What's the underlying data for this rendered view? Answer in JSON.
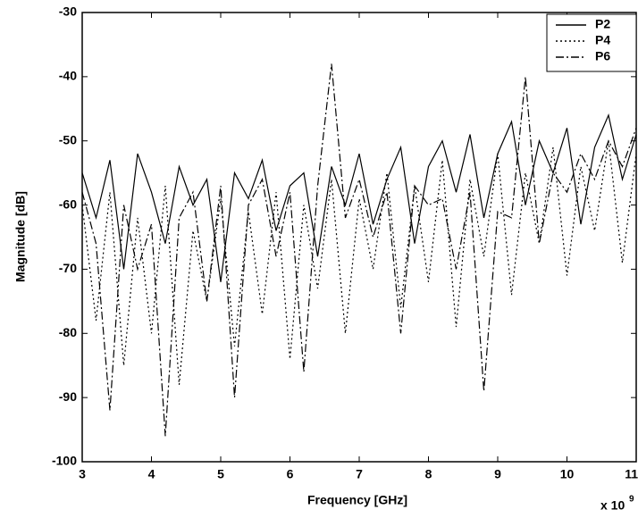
{
  "chart_data": {
    "type": "line",
    "xlabel": "Frequency [GHz]",
    "ylabel": "Magnitude [dB]",
    "x_multiplier": "x 10",
    "x_multiplier_exponent": "9",
    "x": [
      3,
      3.2,
      3.4,
      3.6,
      3.8,
      4,
      4.2,
      4.4,
      4.6,
      4.8,
      5,
      5.2,
      5.4,
      5.6,
      5.8,
      6,
      6.2,
      6.4,
      6.6,
      6.8,
      7,
      7.2,
      7.4,
      7.6,
      7.8,
      8,
      8.2,
      8.4,
      8.6,
      8.8,
      9,
      9.2,
      9.4,
      9.6,
      9.8,
      10,
      10.2,
      10.4,
      10.6,
      10.8,
      11
    ],
    "series": [
      {
        "name": "P2",
        "color": "#000000",
        "style": "solid",
        "values": [
          -55,
          -62,
          -53,
          -70,
          -52,
          -58,
          -66,
          -54,
          -60,
          -56,
          -72,
          -55,
          -59,
          -53,
          -64,
          -57,
          -55,
          -68,
          -54,
          -60,
          -52,
          -63,
          -56,
          -51,
          -66,
          -54,
          -50,
          -58,
          -49,
          -62,
          -52,
          -47,
          -60,
          -50,
          -55,
          -48,
          -63,
          -51,
          -46,
          -56,
          -49
        ]
      },
      {
        "name": "P4",
        "color": "#000000",
        "style": "dotted",
        "values": [
          -60,
          -78,
          -58,
          -85,
          -62,
          -80,
          -57,
          -88,
          -64,
          -75,
          -59,
          -82,
          -61,
          -77,
          -58,
          -84,
          -60,
          -73,
          -56,
          -80,
          -59,
          -70,
          -55,
          -76,
          -57,
          -72,
          -53,
          -79,
          -56,
          -68,
          -52,
          -74,
          -55,
          -66,
          -51,
          -71,
          -54,
          -64,
          -50,
          -69,
          -52
        ]
      },
      {
        "name": "P6",
        "color": "#000000",
        "style": "dashdot",
        "values": [
          -58,
          -66,
          -92,
          -60,
          -70,
          -63,
          -96,
          -62,
          -58,
          -75,
          -57,
          -90,
          -60,
          -56,
          -68,
          -58,
          -86,
          -57,
          -38,
          -62,
          -56,
          -65,
          -58,
          -80,
          -57,
          -60,
          -59,
          -70,
          -58,
          -89,
          -61,
          -62,
          -40,
          -66,
          -55,
          -58,
          -52,
          -56,
          -50,
          -54,
          -48
        ]
      }
    ],
    "xlim": [
      3,
      11
    ],
    "xticks": [
      3,
      4,
      5,
      6,
      7,
      8,
      9,
      10,
      11
    ],
    "ylim": [
      -100,
      -30
    ],
    "yticks": [
      -100,
      -90,
      -80,
      -70,
      -60,
      -50,
      -40,
      -30
    ],
    "grid": false,
    "legend": "top-right"
  }
}
